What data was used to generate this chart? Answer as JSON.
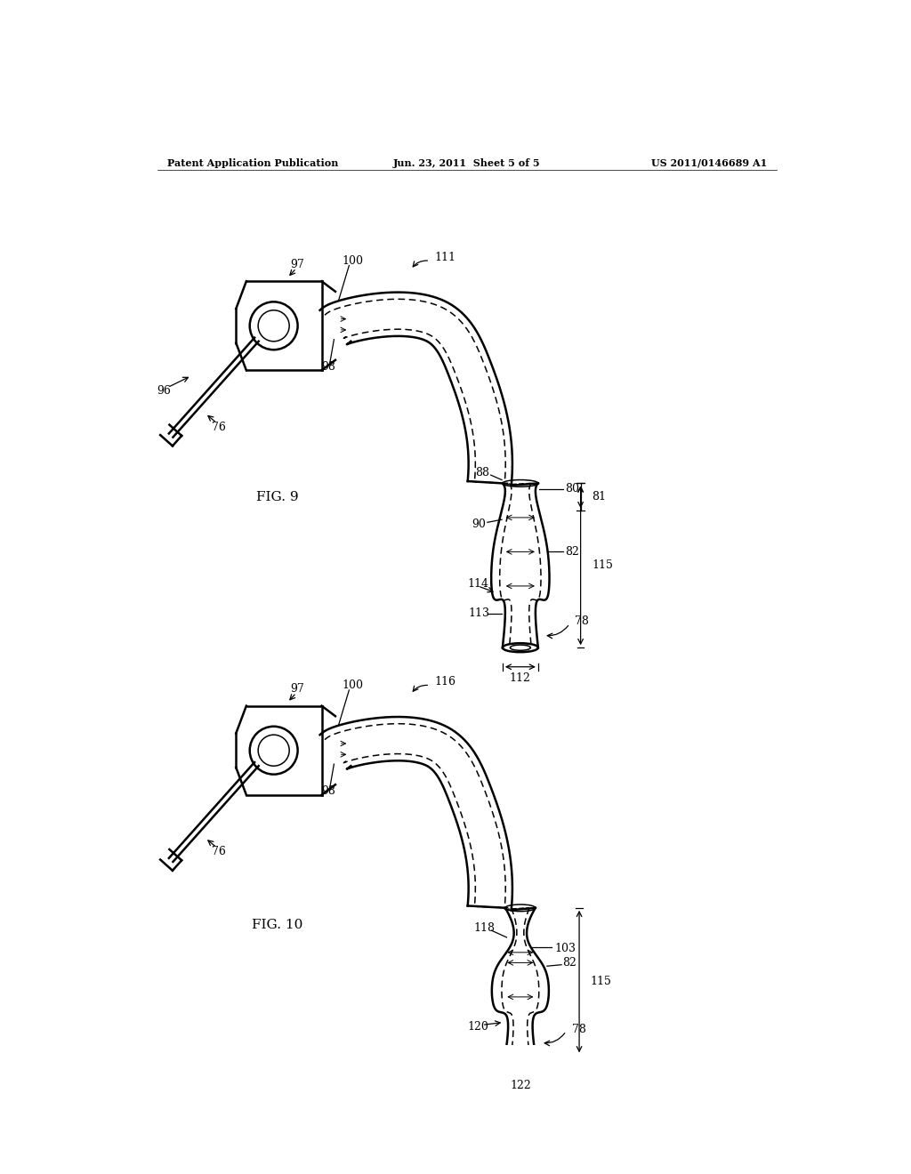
{
  "bg_color": "#ffffff",
  "line_color": "#000000",
  "header_left": "Patent Application Publication",
  "header_center": "Jun. 23, 2011  Sheet 5 of 5",
  "header_right": "US 2011/0146689 A1",
  "fig9_label": "FIG. 9",
  "fig10_label": "FIG. 10",
  "lw_main": 1.8,
  "lw_thin": 1.1,
  "lw_dim": 0.9,
  "fontsize_label": 9,
  "fontsize_fig": 11
}
